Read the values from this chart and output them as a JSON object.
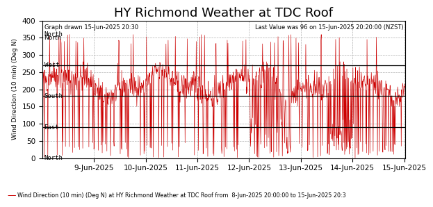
{
  "title": "HY Richmond Weather at TDC Roof",
  "ylabel": "Wind Direction (10 min) (Deg N)",
  "ylim": [
    0,
    400
  ],
  "yticks": [
    0,
    50,
    100,
    150,
    200,
    250,
    300,
    350,
    400
  ],
  "hlines": [
    270,
    180,
    90
  ],
  "compass_labels": [
    {
      "y": 360,
      "label": "North"
    },
    {
      "y": 270,
      "label": "West"
    },
    {
      "y": 180,
      "label": "South"
    },
    {
      "y": 90,
      "label": "East"
    },
    {
      "y": 0,
      "label": "North"
    }
  ],
  "annotation_left": "Graph drawn 15-Jun-2025 20:30",
  "annotation_left2": "North",
  "annotation_right": "Last Value was 96 on 15-Jun-2025 20:20:00 (NZST)",
  "legend_label": "Wind Direction (10 min) (Deg N) at HY Richmond Weather at TDC Roof from  8-Jun-2025 20:00:00 to 15-Jun-2025 20:3",
  "line_color": "#cc0000",
  "hline_color": "black",
  "grid_color": "#b0b0b0",
  "background_color": "white",
  "title_fontsize": 13,
  "axis_fontsize": 7.5,
  "x_tick_labels": [
    "9-Jun-2025",
    "10-Jun-2025",
    "11-Jun-2025",
    "12-Jun-2025",
    "13-Jun-2025",
    "14-Jun-2025",
    "15-Jun-2025"
  ],
  "num_points": 1008,
  "seed": 42
}
